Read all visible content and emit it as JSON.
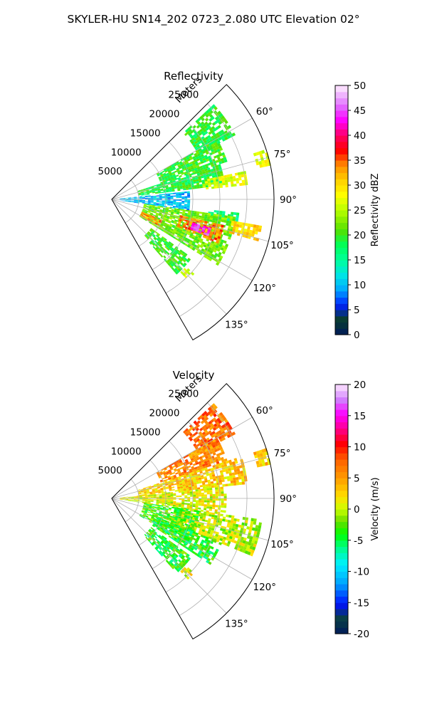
{
  "figure": {
    "title": "SKYLER-HU  SN14_202  0723_2.080 UTC Elevation 02°"
  },
  "chart_data": [
    {
      "type": "heatmap",
      "projection": "polar-sector",
      "title": "Reflectivity",
      "radial_axis_label": "Meters",
      "radial_ticks": [
        5000,
        10000,
        15000,
        20000,
        25000
      ],
      "radial_tick_labels": [
        "5000",
        "10000",
        "15000",
        "20000",
        "25000"
      ],
      "rlim": [
        0,
        30000
      ],
      "azimuth_range_deg": [
        45,
        150
      ],
      "azimuth_ticks": [
        60,
        75,
        90,
        105,
        120,
        135
      ],
      "azimuth_tick_labels": [
        "60°",
        "75°",
        "90°",
        "105°",
        "120°",
        "135°"
      ],
      "grid": true,
      "colorbar": {
        "label": "Reflectivity dBZ",
        "range": [
          0,
          50
        ],
        "ticks": [
          0,
          5,
          10,
          15,
          20,
          25,
          30,
          35,
          40,
          45,
          50
        ],
        "tick_labels": [
          "0",
          "5",
          "10",
          "15",
          "20",
          "25",
          "30",
          "35",
          "40",
          "45",
          "50"
        ],
        "colormap": "NWSRef"
      },
      "echo_regions": [
        {
          "az": [
            47,
            62
          ],
          "r": [
            18000,
            25500
          ],
          "value": 19
        },
        {
          "az": [
            60,
            72
          ],
          "r": [
            9500,
            22000
          ],
          "value": 20
        },
        {
          "az": [
            72,
            82
          ],
          "r": [
            5000,
            21000
          ],
          "value": 19
        },
        {
          "az": [
            78,
            84
          ],
          "r": [
            17000,
            25000
          ],
          "value": 27
        },
        {
          "az": [
            84,
            98
          ],
          "r": [
            1500,
            14000
          ],
          "value": 10
        },
        {
          "az": [
            96,
            100
          ],
          "r": [
            18000,
            23500
          ],
          "value": 17
        },
        {
          "az": [
            98,
            122
          ],
          "r": [
            6000,
            23000
          ],
          "value": 22
        },
        {
          "az": [
            103,
            112
          ],
          "r": [
            13000,
            21000
          ],
          "value": 34
        },
        {
          "az": [
            106,
            110
          ],
          "r": [
            15500,
            19000
          ],
          "value": 44
        },
        {
          "az": [
            100,
            105
          ],
          "r": [
            22500,
            28000
          ],
          "value": 30
        },
        {
          "az": [
            112,
            120
          ],
          "r": [
            6000,
            10000
          ],
          "value": 33
        },
        {
          "az": [
            126,
            138
          ],
          "r": [
            9000,
            18000
          ],
          "value": 20
        },
        {
          "az": [
            132,
            136
          ],
          "r": [
            18500,
            20500
          ],
          "value": 27
        },
        {
          "az": [
            72,
            78
          ],
          "r": [
            27500,
            30000
          ],
          "value": 27
        }
      ]
    },
    {
      "type": "heatmap",
      "projection": "polar-sector",
      "title": "Velocity",
      "radial_axis_label": "Meters",
      "radial_ticks": [
        5000,
        10000,
        15000,
        20000,
        25000
      ],
      "radial_tick_labels": [
        "5000",
        "10000",
        "15000",
        "20000",
        "25000"
      ],
      "rlim": [
        0,
        30000
      ],
      "azimuth_range_deg": [
        45,
        150
      ],
      "azimuth_ticks": [
        60,
        75,
        90,
        105,
        120,
        135
      ],
      "azimuth_tick_labels": [
        "60°",
        "75°",
        "90°",
        "105°",
        "120°",
        "135°"
      ],
      "grid": true,
      "colorbar": {
        "label": "Velocity (m/s)",
        "range": [
          -20,
          20
        ],
        "ticks": [
          -20,
          -15,
          -10,
          -5,
          0,
          5,
          10,
          15,
          20
        ],
        "tick_labels": [
          "-20",
          "-15",
          "-10",
          "-5",
          "0",
          "5",
          "10",
          "15",
          "20"
        ],
        "colormap": "NWSVel"
      },
      "echo_regions": [
        {
          "az": [
            47,
            62
          ],
          "r": [
            18000,
            25500
          ],
          "value": 7
        },
        {
          "az": [
            60,
            72
          ],
          "r": [
            9500,
            22000
          ],
          "value": 6
        },
        {
          "az": [
            72,
            84
          ],
          "r": [
            5000,
            25000
          ],
          "value": 3
        },
        {
          "az": [
            84,
            98
          ],
          "r": [
            1500,
            21000
          ],
          "value": 1
        },
        {
          "az": [
            98,
            112
          ],
          "r": [
            12000,
            28000
          ],
          "value": 0
        },
        {
          "az": [
            98,
            122
          ],
          "r": [
            6000,
            16000
          ],
          "value": -3
        },
        {
          "az": [
            112,
            124
          ],
          "r": [
            9000,
            22000
          ],
          "value": -4
        },
        {
          "az": [
            126,
            138
          ],
          "r": [
            9000,
            18000
          ],
          "value": -4
        },
        {
          "az": [
            132,
            136
          ],
          "r": [
            18500,
            20500
          ],
          "value": 1
        },
        {
          "az": [
            72,
            78
          ],
          "r": [
            27500,
            30000
          ],
          "value": 3
        }
      ]
    }
  ]
}
